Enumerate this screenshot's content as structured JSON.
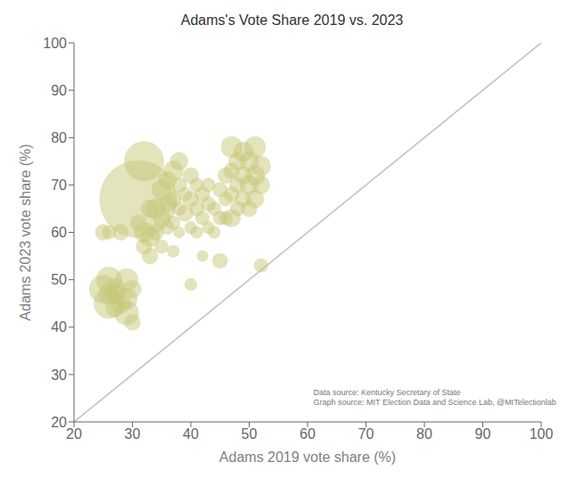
{
  "chart_data": {
    "type": "scatter",
    "title": "Adams's Vote Share 2019 vs. 2023",
    "xlabel": "Adams 2019 vote share (%)",
    "ylabel": "Adams 2023 vote share (%)",
    "xlim": [
      20,
      100
    ],
    "ylim": [
      20,
      100
    ],
    "xticks": [
      20,
      30,
      40,
      50,
      60,
      70,
      80,
      90,
      100
    ],
    "yticks": [
      20,
      30,
      40,
      50,
      60,
      70,
      80,
      90,
      100
    ],
    "grid": false,
    "annotations": [
      {
        "text": "Data source: Kentucky Secretary of State\nGraph source: MIT Election Data and Science Lab, @MITelectionlab",
        "x": 61,
        "y": 23.5
      }
    ],
    "series": [
      {
        "type": "line",
        "color": "#c0c0c0",
        "x": [
          20,
          100
        ],
        "values": [
          20,
          100
        ]
      },
      {
        "type": "scatter",
        "color": "#c8c87a",
        "x": [
          25,
          26,
          26,
          27,
          27,
          28,
          28,
          29,
          29,
          29,
          30,
          30,
          31,
          31,
          32,
          32,
          32,
          33,
          33,
          33,
          34,
          34,
          35,
          35,
          35,
          36,
          36,
          36,
          37,
          37,
          37,
          37,
          38,
          38,
          38,
          38,
          39,
          39,
          40,
          40,
          40,
          40,
          41,
          41,
          41,
          42,
          42,
          42,
          43,
          43,
          43,
          44,
          44,
          45,
          45,
          45,
          46,
          46,
          46,
          47,
          47,
          47,
          47,
          48,
          48,
          48,
          49,
          49,
          49,
          50,
          50,
          50,
          51,
          51,
          51,
          52,
          52,
          52,
          26,
          25,
          26,
          27
        ],
        "values": [
          60,
          47,
          50,
          44,
          47,
          45,
          60,
          50,
          43,
          46,
          41,
          48,
          67,
          62,
          57,
          75,
          60,
          65,
          55,
          59,
          65,
          60,
          69,
          63,
          57,
          71,
          66,
          61,
          73,
          67,
          62,
          56,
          75,
          70,
          65,
          60,
          64,
          68,
          67,
          61,
          72,
          49,
          65,
          60,
          70,
          63,
          68,
          55,
          66,
          61,
          70,
          65,
          60,
          63,
          69,
          54,
          63,
          67,
          72,
          63,
          68,
          73,
          78,
          65,
          70,
          75,
          67,
          72,
          77,
          70,
          65,
          75,
          67,
          72,
          78,
          70,
          74,
          53,
          60,
          48,
          45,
          48
        ],
        "size": [
          200,
          350,
          500,
          250,
          300,
          300,
          200,
          400,
          450,
          350,
          200,
          250,
          4500,
          200,
          200,
          1200,
          300,
          250,
          200,
          300,
          300,
          200,
          300,
          250,
          150,
          250,
          200,
          150,
          300,
          200,
          150,
          120,
          250,
          180,
          150,
          100,
          200,
          150,
          200,
          120,
          200,
          120,
          170,
          120,
          150,
          150,
          180,
          100,
          170,
          120,
          150,
          150,
          120,
          150,
          170,
          180,
          150,
          150,
          200,
          250,
          180,
          200,
          350,
          170,
          200,
          250,
          200,
          250,
          300,
          270,
          200,
          300,
          250,
          300,
          350,
          250,
          300,
          150,
          150,
          600,
          700,
          350
        ]
      }
    ]
  }
}
